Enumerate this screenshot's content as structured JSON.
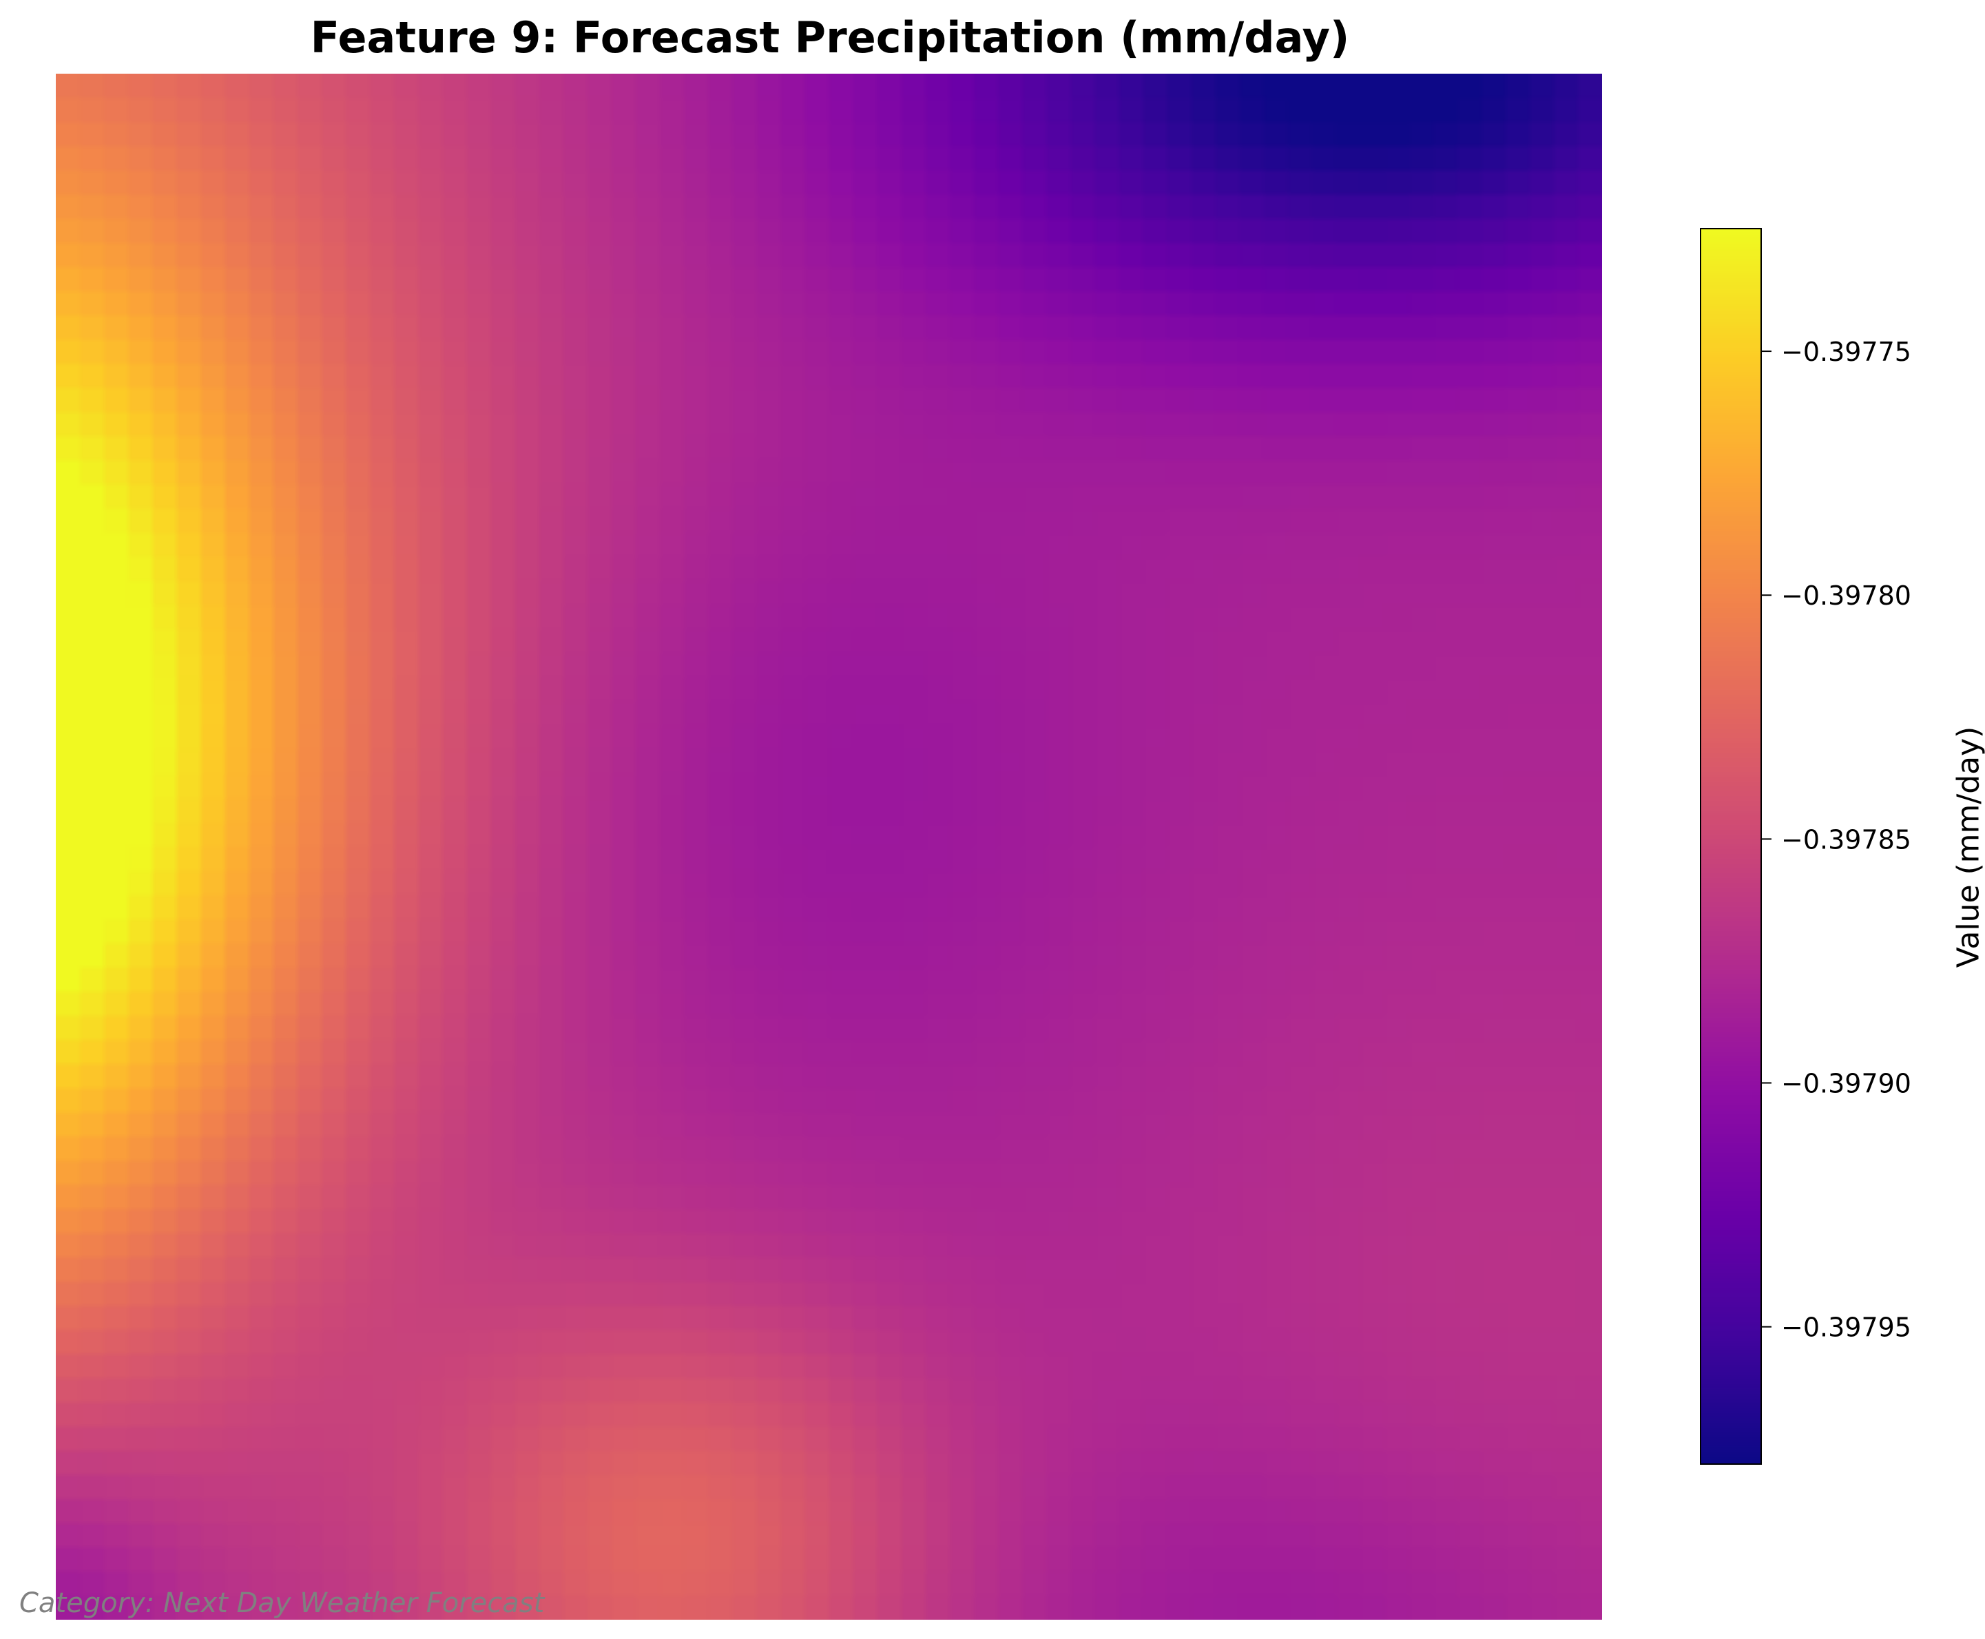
{
  "chart_data": {
    "type": "heatmap",
    "title": "Feature 9: Forecast Precipitation (mm/day)",
    "colormap": "plasma",
    "grid_size": [
      64,
      64
    ],
    "axes_visible": false,
    "value_range": [
      -0.397978,
      -0.397725
    ],
    "field_description": "Maximum near left edge at about 45% height; minimum at top-right; secondary warm lobe near bottom-center; broad purple plateau in the middle and right.",
    "features": {
      "max": {
        "value": -0.397725,
        "col": 0,
        "row": 28
      },
      "min": {
        "value": -0.397978,
        "col": 54,
        "row": 0
      },
      "bottom_lobe": {
        "value": -0.39783,
        "col": 26,
        "row": 60
      }
    },
    "colorbar": {
      "label": "Value (mm/day)",
      "ticks": [
        -0.39775,
        -0.3978,
        -0.39785,
        -0.3979,
        -0.39795
      ],
      "tick_labels": [
        "−0.39775",
        "−0.39780",
        "−0.39785",
        "−0.39790",
        "−0.39795"
      ],
      "placement": "right"
    },
    "footnote": "Category: Next Day Weather Forecast"
  }
}
